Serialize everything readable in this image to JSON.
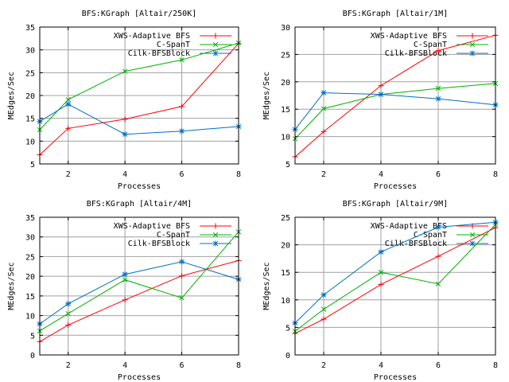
{
  "chart_data": [
    {
      "type": "line",
      "title": "BFS:KGraph [Altair/250K]",
      "xlabel": "Processes",
      "ylabel": "MEdges/Sec",
      "x": [
        1,
        2,
        4,
        6,
        8
      ],
      "xticks": [
        "2",
        "4",
        "6",
        "8"
      ],
      "xlim": [
        1,
        8
      ],
      "ylim": [
        5,
        35
      ],
      "yticks": [
        "5",
        "10",
        "15",
        "20",
        "25",
        "30",
        "35"
      ],
      "grid": true,
      "legend_position": "top-right",
      "series": [
        {
          "name": "XWS-Adaptive BFS",
          "color": "#ff0000",
          "marker": "plus",
          "values": [
            7,
            12.8,
            14.8,
            17.6,
            31.4
          ]
        },
        {
          "name": "C-SpanT",
          "color": "#00b000",
          "marker": "cross",
          "values": [
            12.5,
            19.1,
            25.3,
            27.8,
            31.5
          ]
        },
        {
          "name": "Cilk-BFSBlock",
          "color": "#0070c0",
          "marker": "star",
          "values": [
            14.3,
            18.1,
            11.5,
            12.2,
            13.2
          ]
        }
      ]
    },
    {
      "type": "line",
      "title": "BFS:KGraph [Altair/1M]",
      "xlabel": "Processes",
      "ylabel": "MEdges/Sec",
      "x": [
        1,
        2,
        4,
        6,
        8
      ],
      "xticks": [
        "2",
        "4",
        "6",
        "8"
      ],
      "xlim": [
        1,
        8
      ],
      "ylim": [
        5,
        30
      ],
      "yticks": [
        "5",
        "10",
        "15",
        "20",
        "25",
        "30"
      ],
      "grid": true,
      "legend_position": "top-right",
      "series": [
        {
          "name": "XWS-Adaptive BFS",
          "color": "#ff0000",
          "marker": "plus",
          "values": [
            6.3,
            10.9,
            19.3,
            25.7,
            28.5
          ]
        },
        {
          "name": "C-SpanT",
          "color": "#00b000",
          "marker": "cross",
          "values": [
            9.6,
            15.1,
            17.7,
            18.8,
            19.7
          ]
        },
        {
          "name": "Cilk-BFSBlock",
          "color": "#0070c0",
          "marker": "star",
          "values": [
            11.3,
            18,
            17.7,
            16.9,
            15.8
          ]
        }
      ]
    },
    {
      "type": "line",
      "title": "BFS:KGraph [Altair/4M]",
      "xlabel": "Processes",
      "ylabel": "MEdges/Sec",
      "x": [
        1,
        2,
        4,
        6,
        8
      ],
      "xticks": [
        "2",
        "4",
        "6",
        "8"
      ],
      "xlim": [
        1,
        8
      ],
      "ylim": [
        0,
        35
      ],
      "yticks": [
        "0",
        "5",
        "10",
        "15",
        "20",
        "25",
        "30",
        "35"
      ],
      "grid": true,
      "legend_position": "top-right",
      "series": [
        {
          "name": "XWS-Adaptive BFS",
          "color": "#ff0000",
          "marker": "plus",
          "values": [
            3.4,
            7.6,
            14,
            20.1,
            24
          ]
        },
        {
          "name": "C-SpanT",
          "color": "#00b000",
          "marker": "cross",
          "values": [
            6.1,
            10.5,
            19.1,
            14.5,
            31.3
          ]
        },
        {
          "name": "Cilk-BFSBlock",
          "color": "#0070c0",
          "marker": "star",
          "values": [
            7.9,
            13,
            20.5,
            23.7,
            19.2
          ]
        }
      ]
    },
    {
      "type": "line",
      "title": "BFS:KGraph [Altair/9M]",
      "xlabel": "Processes",
      "ylabel": "MEdges/Sec",
      "x": [
        1,
        2,
        4,
        6,
        8
      ],
      "xticks": [
        "2",
        "4",
        "6",
        "8"
      ],
      "xlim": [
        1,
        8
      ],
      "ylim": [
        0,
        25
      ],
      "yticks": [
        "0",
        "5",
        "10",
        "15",
        "20",
        "25"
      ],
      "grid": true,
      "legend_position": "top-right",
      "series": [
        {
          "name": "XWS-Adaptive BFS",
          "color": "#ff0000",
          "marker": "plus",
          "values": [
            3.9,
            6.5,
            12.8,
            17.9,
            23.1
          ]
        },
        {
          "name": "C-SpanT",
          "color": "#00b000",
          "marker": "cross",
          "values": [
            4.3,
            8.3,
            15,
            12.9,
            23.7
          ]
        },
        {
          "name": "Cilk-BFSBlock",
          "color": "#0070c0",
          "marker": "star",
          "values": [
            5.8,
            10.9,
            18.7,
            23.2,
            24.1
          ]
        }
      ]
    }
  ]
}
